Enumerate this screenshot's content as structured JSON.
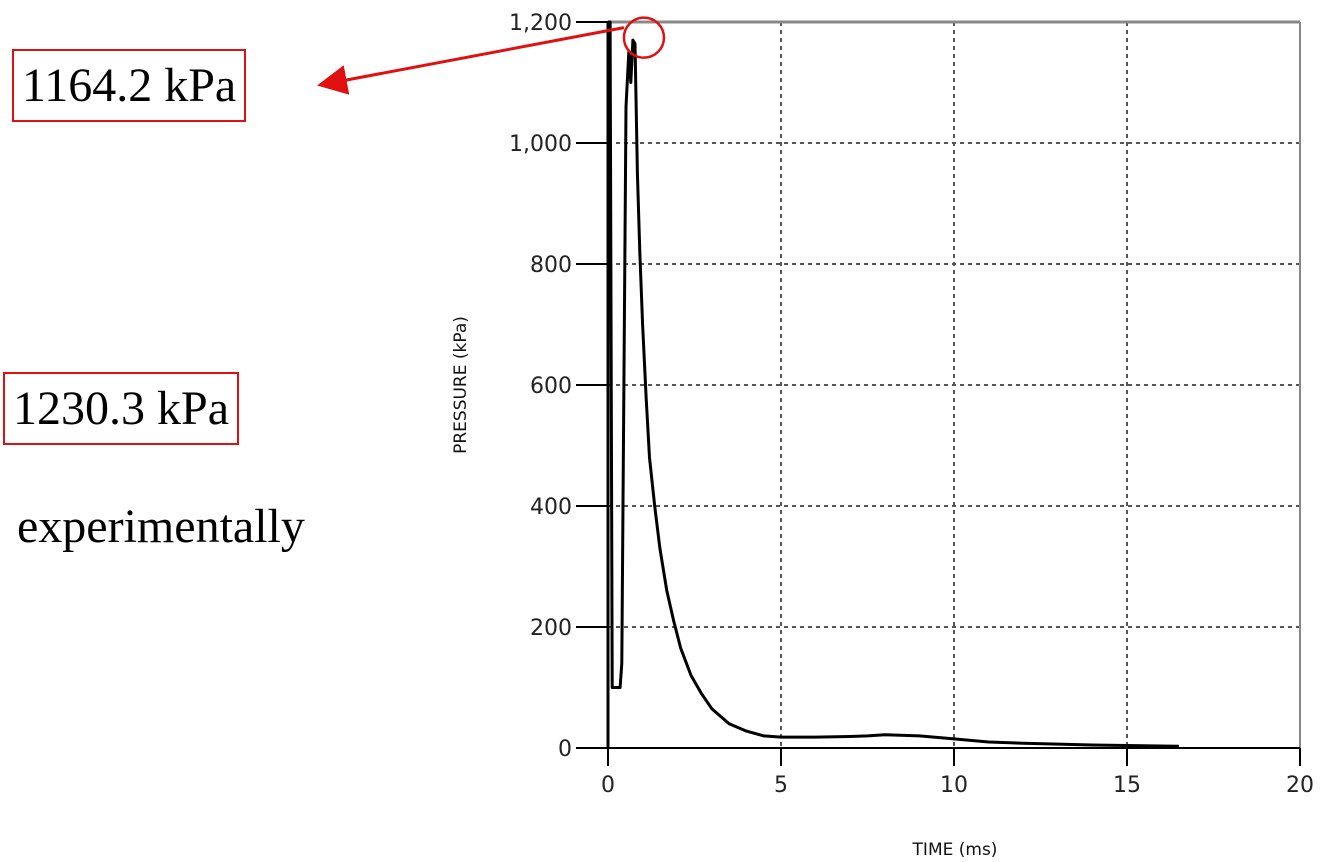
{
  "annotations": {
    "simulated_peak": "1164.2 kPa",
    "experimental_peak": "1230.3 kPa",
    "experimental_note": "experimentally"
  },
  "colors": {
    "annotation": "#e01010",
    "curve": "#000000",
    "grid": "#555555",
    "frame": "#888888"
  },
  "chart_data": {
    "type": "line",
    "title": "",
    "xlabel": "TIME (ms)",
    "ylabel": "PRESSURE (kPa)",
    "xlim": [
      0,
      20
    ],
    "ylim": [
      0,
      1200
    ],
    "x_ticks": [
      0,
      5,
      10,
      15,
      20
    ],
    "x_tick_labels": [
      "0",
      "5",
      "10",
      "15",
      "20"
    ],
    "y_ticks": [
      0,
      200,
      400,
      600,
      800,
      1000,
      1200
    ],
    "y_tick_labels": [
      "0",
      "200",
      "400",
      "600",
      "800",
      "1,000",
      "1,200"
    ],
    "grid": true,
    "peak_marker": {
      "x": 0.75,
      "y": 1164.2
    },
    "series": [
      {
        "x": [
          0,
          0.06,
          0.12,
          0.35,
          0.4,
          0.52,
          0.6,
          0.66,
          0.72,
          0.78,
          0.85,
          0.92,
          1.0,
          1.1,
          1.2,
          1.35,
          1.5,
          1.7,
          1.9,
          2.1,
          2.4,
          2.7,
          3.0,
          3.5,
          4.0,
          4.5,
          5.0,
          6.0,
          7.0,
          7.5,
          8.0,
          9.0,
          10.0,
          11.0,
          12.0,
          14.0,
          16.5
        ],
        "y": [
          1200,
          1200,
          100,
          100,
          140,
          1060,
          1150,
          1100,
          1170,
          1164,
          950,
          820,
          700,
          580,
          480,
          400,
          330,
          260,
          210,
          165,
          120,
          90,
          65,
          40,
          28,
          20,
          18,
          18,
          19,
          20,
          22,
          20,
          15,
          10,
          8,
          5,
          3
        ]
      }
    ]
  }
}
